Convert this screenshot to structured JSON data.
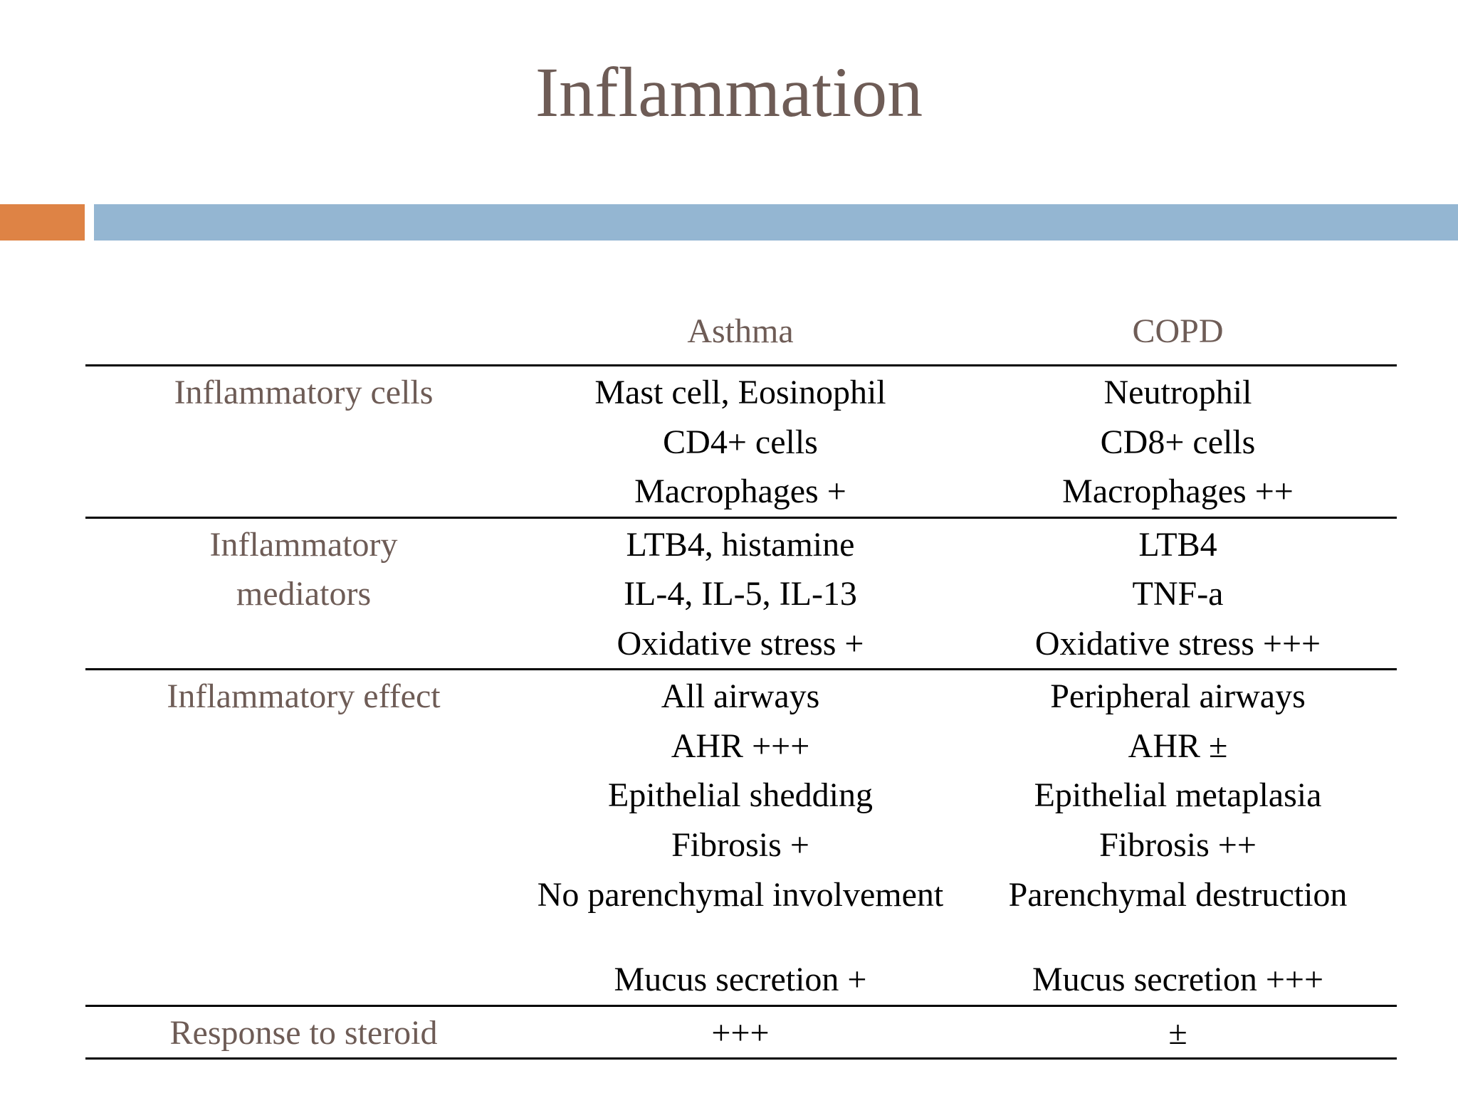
{
  "title": "Inflammation",
  "colors": {
    "title": "#6e5c56",
    "accent_orange": "#de8345",
    "accent_blue": "#94b6d2"
  },
  "table": {
    "headers": [
      "",
      "Asthma",
      "COPD"
    ],
    "rows": [
      {
        "label": [
          "Inflammatory cells"
        ],
        "asthma": [
          "Mast cell, Eosinophil",
          "CD4+ cells",
          "Macrophages +"
        ],
        "copd": [
          "Neutrophil",
          "CD8+ cells",
          "Macrophages ++"
        ]
      },
      {
        "label": [
          "Inflammatory",
          "mediators"
        ],
        "asthma": [
          "LTB4, histamine",
          "IL-4, IL-5, IL-13",
          "Oxidative stress +"
        ],
        "copd": [
          "LTB4",
          "TNF-a",
          "Oxidative stress +++"
        ]
      },
      {
        "label": [
          "Inflammatory effect"
        ],
        "asthma": [
          "All airways",
          "AHR +++",
          "Epithelial shedding",
          "Fibrosis +",
          "No parenchymal involvement",
          "Mucus secretion +"
        ],
        "copd": [
          "Peripheral airways",
          "AHR ±",
          "Epithelial metaplasia",
          "Fibrosis ++",
          "Parenchymal destruction",
          "Mucus secretion +++"
        ]
      },
      {
        "label": [
          "Response to steroid"
        ],
        "asthma": [
          "+++"
        ],
        "copd": [
          "±"
        ]
      }
    ]
  }
}
